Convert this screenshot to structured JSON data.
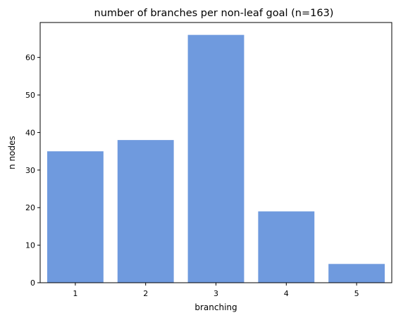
{
  "chart_data": {
    "type": "bar",
    "title": "number of branches per non-leaf goal (n=163)",
    "xlabel": "branching",
    "ylabel": "n nodes",
    "categories": [
      "1",
      "2",
      "3",
      "4",
      "5"
    ],
    "values": [
      35,
      38,
      66,
      19,
      5
    ],
    "ylim": [
      0,
      69.3
    ],
    "yticks": [
      0,
      10,
      20,
      30,
      40,
      50,
      60
    ],
    "bar_color": "#6f9ade",
    "grid": false,
    "legend": "none"
  }
}
